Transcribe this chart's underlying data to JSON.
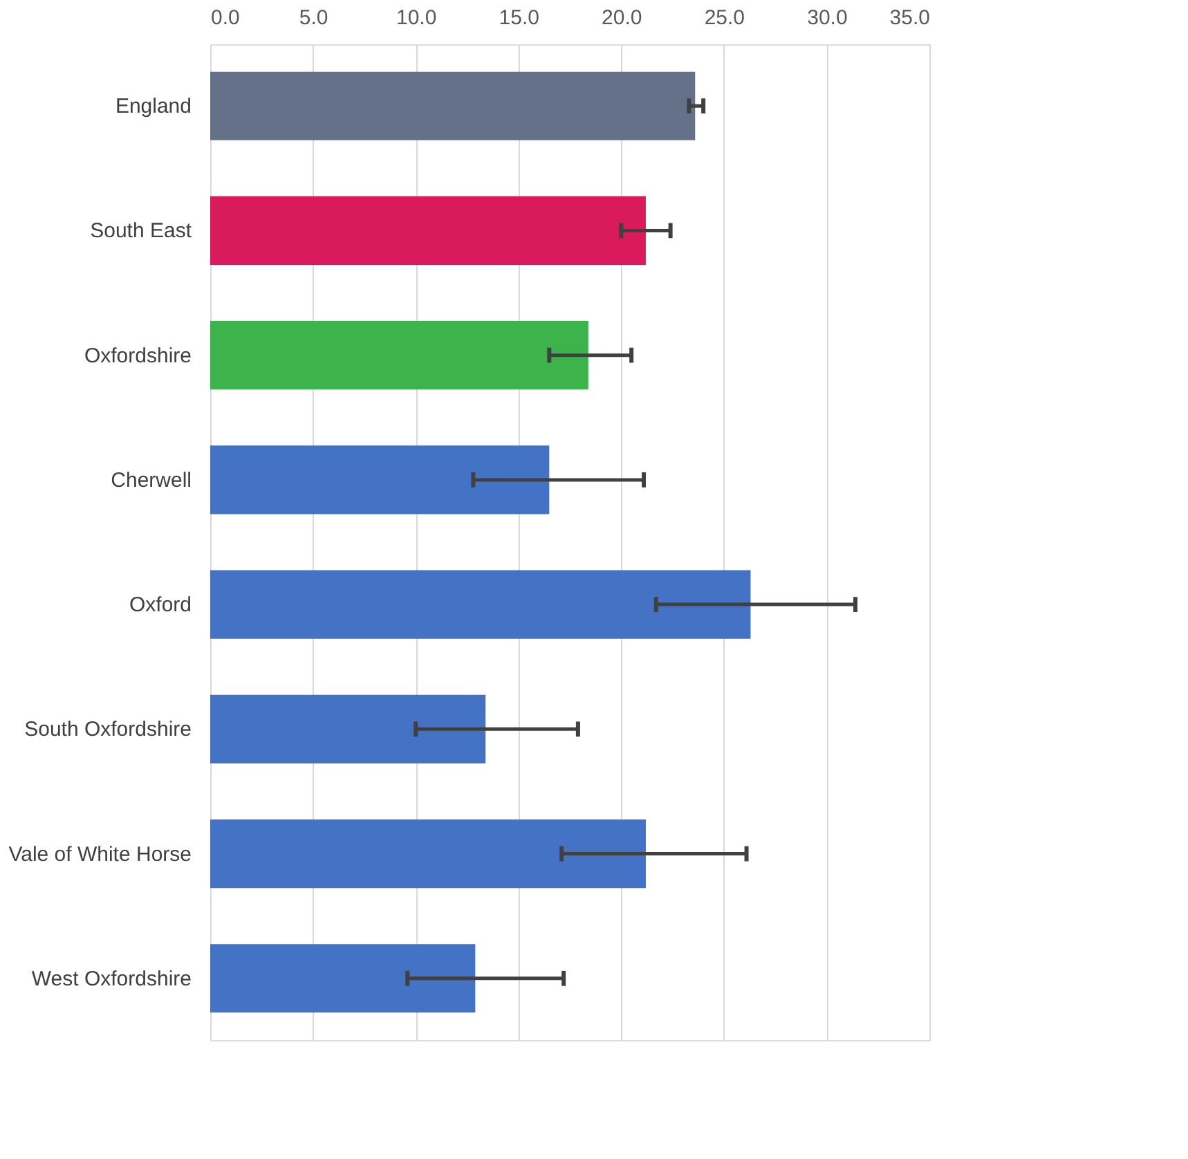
{
  "chart_data": {
    "type": "bar",
    "orientation": "horizontal",
    "categories": [
      "England",
      "South East",
      "Oxfordshire",
      "Cherwell",
      "Oxford",
      "South Oxfordshire",
      "Vale of White Horse",
      "West Oxfordshire"
    ],
    "values": [
      23.6,
      21.2,
      18.4,
      16.5,
      26.3,
      13.4,
      21.2,
      12.9
    ],
    "colors": [
      "#657089",
      "#d91b5c",
      "#3cb44b",
      "#4472c4",
      "#4472c4",
      "#4472c4",
      "#4472c4",
      "#4472c4"
    ],
    "errors": [
      [
        23.3,
        24.0
      ],
      [
        20.0,
        22.4
      ],
      [
        16.5,
        20.5
      ],
      [
        12.8,
        21.1
      ],
      [
        21.7,
        31.4
      ],
      [
        10.0,
        17.9
      ],
      [
        17.1,
        26.1
      ],
      [
        9.6,
        17.2
      ]
    ],
    "xlim": [
      0,
      35
    ],
    "xticks": [
      {
        "value": 0,
        "label": "0.0"
      },
      {
        "value": 5,
        "label": "5.0"
      },
      {
        "value": 10,
        "label": "10.0"
      },
      {
        "value": 15,
        "label": "15.0"
      },
      {
        "value": 20,
        "label": "20.0"
      },
      {
        "value": 25,
        "label": "25.0"
      },
      {
        "value": 30,
        "label": "30.0"
      },
      {
        "value": 35,
        "label": "35.0"
      }
    ],
    "grid": "x",
    "legend": false
  }
}
